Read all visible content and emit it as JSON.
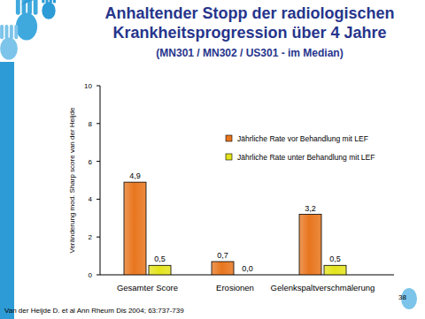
{
  "chart_data": {
    "type": "bar",
    "title": "Anhaltender Stopp der radiologischen Krankheitsprogression über 4 Jahre",
    "subtitle": "(MN301 / MN302 / US301 - im Median)",
    "y_label": "Veränderung mod. Sharp score van der Heijde",
    "categories": [
      "Gesamter Score",
      "Erosionen",
      "Gelenkspaltverschmälerung"
    ],
    "series": [
      {
        "name": "Jährliche Rate vor Behandlung mit LEF",
        "color": "#e8761e",
        "values": [
          4.9,
          0.7,
          3.2
        ],
        "value_labels": [
          "4,9",
          "0,7",
          "3,2"
        ]
      },
      {
        "name": "Jährliche Rate unter Behandlung mit LEF",
        "color": "#e4e41c",
        "values": [
          0.5,
          0.0,
          0.5
        ],
        "value_labels": [
          "0,5",
          "0,0",
          "0,5"
        ]
      }
    ],
    "ylim": [
      0,
      10
    ],
    "yticks": [
      0,
      2,
      4,
      6,
      8,
      10
    ],
    "data_labels": true,
    "grid": false,
    "legend": "right",
    "annotations": [
      "Van der Heijde D. et al Ann Rheum Dis 2004; 63:737-739",
      "38"
    ]
  }
}
